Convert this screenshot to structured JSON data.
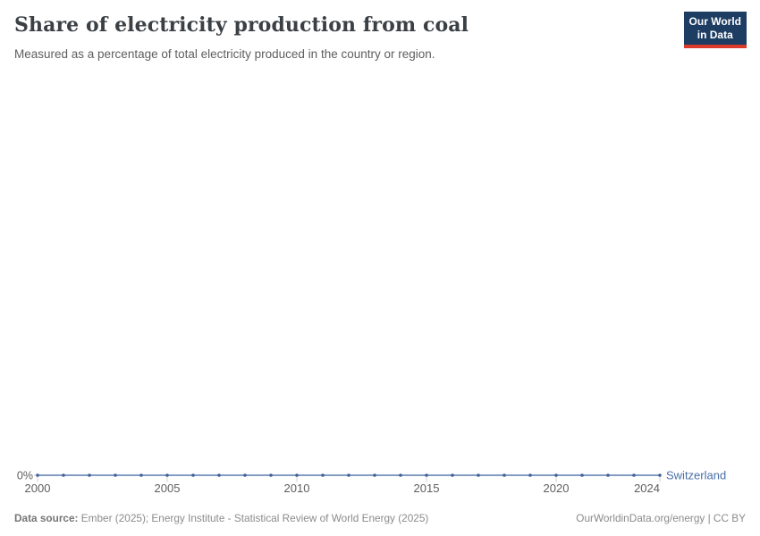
{
  "header": {
    "title": "Share of electricity production from coal",
    "subtitle": "Measured as a percentage of total electricity produced in the country or region.",
    "logo": {
      "line1": "Our World",
      "line2": "in Data",
      "bg_color": "#1d3d63",
      "accent_color": "#dc3b2b"
    }
  },
  "chart_data": {
    "type": "line",
    "title": "Share of electricity production from coal",
    "subtitle": "Measured as a percentage of total electricity produced in the country or region.",
    "x": [
      2000,
      2001,
      2002,
      2003,
      2004,
      2005,
      2006,
      2007,
      2008,
      2009,
      2010,
      2011,
      2012,
      2013,
      2014,
      2015,
      2016,
      2017,
      2018,
      2019,
      2020,
      2021,
      2022,
      2023,
      2024
    ],
    "series": [
      {
        "name": "Switzerland",
        "unit": "%",
        "values": [
          0,
          0,
          0,
          0,
          0,
          0,
          0,
          0,
          0,
          0,
          0,
          0,
          0,
          0,
          0,
          0,
          0,
          0,
          0,
          0,
          0,
          0,
          0,
          0,
          0
        ],
        "line_color": "#5b7cad",
        "marker_color": "#3e5f9a",
        "label_color": "#4a6fa8"
      }
    ],
    "x_ticks": [
      2000,
      2005,
      2010,
      2015,
      2020,
      2024
    ],
    "y_ticks": [
      {
        "value": 0,
        "label": "0%"
      }
    ],
    "xlim": [
      2000,
      2024
    ],
    "ylim": [
      0,
      0
    ],
    "grid": false,
    "legend_position": "end-of-line",
    "tick_color": "#cfcfcf",
    "tick_label_color": "#5e5e5e"
  },
  "footer": {
    "source_label": "Data source:",
    "source_text": " Ember (2025); Energy Institute - Statistical Review of World Energy (2025)",
    "right_text": "OurWorldinData.org/energy | CC BY"
  }
}
